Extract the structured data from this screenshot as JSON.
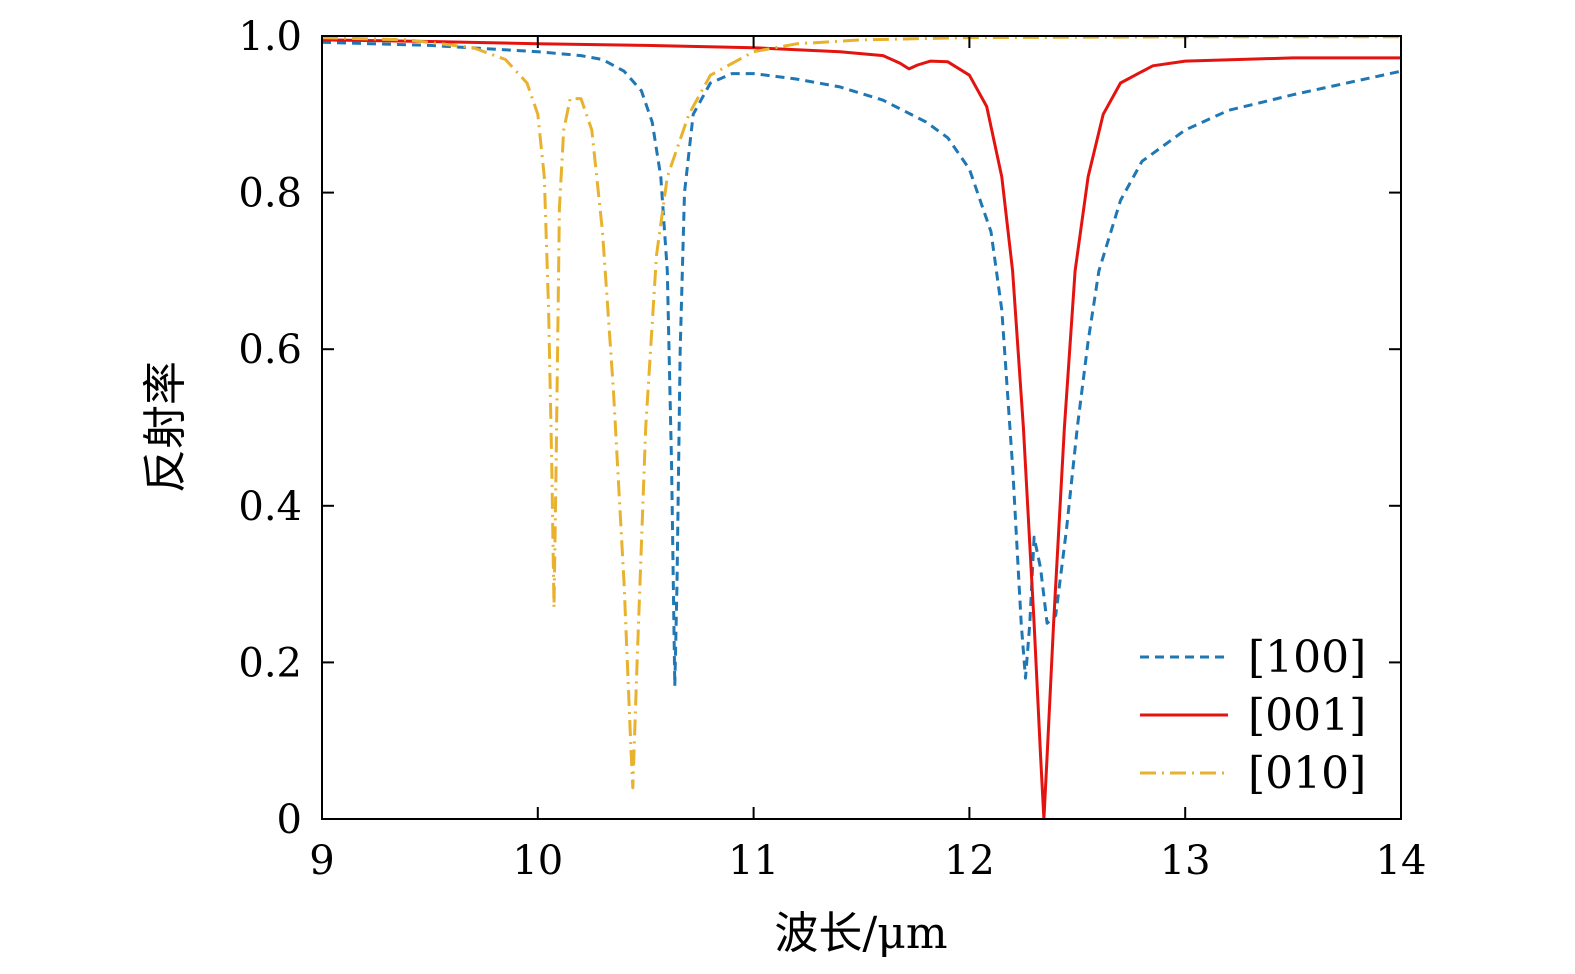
{
  "chart_data": {
    "type": "line",
    "xlabel": "波长/μm",
    "ylabel": "反射率",
    "xlim": [
      9,
      14
    ],
    "ylim": [
      0,
      1.0
    ],
    "xticks": [
      9,
      10,
      11,
      12,
      13,
      14
    ],
    "xtick_labels": [
      "9",
      "10",
      "11",
      "12",
      "13",
      "14"
    ],
    "yticks": [
      0,
      0.2,
      0.4,
      0.6,
      0.8,
      1.0
    ],
    "ytick_labels": [
      "0",
      "0.2",
      "0.4",
      "0.6",
      "0.8",
      "1.0"
    ],
    "grid": false,
    "legend_position": "bottom-right",
    "series": [
      {
        "name": "[100]",
        "color": "#1f77b4",
        "dash": "dashed",
        "points": [
          [
            9.0,
            0.992
          ],
          [
            9.5,
            0.988
          ],
          [
            10.0,
            0.98
          ],
          [
            10.2,
            0.975
          ],
          [
            10.3,
            0.97
          ],
          [
            10.4,
            0.955
          ],
          [
            10.48,
            0.93
          ],
          [
            10.53,
            0.89
          ],
          [
            10.57,
            0.82
          ],
          [
            10.6,
            0.7
          ],
          [
            10.62,
            0.45
          ],
          [
            10.635,
            0.17
          ],
          [
            10.645,
            0.3
          ],
          [
            10.66,
            0.6
          ],
          [
            10.68,
            0.8
          ],
          [
            10.72,
            0.9
          ],
          [
            10.8,
            0.94
          ],
          [
            10.9,
            0.952
          ],
          [
            11.0,
            0.952
          ],
          [
            11.2,
            0.945
          ],
          [
            11.4,
            0.935
          ],
          [
            11.6,
            0.918
          ],
          [
            11.8,
            0.89
          ],
          [
            11.9,
            0.87
          ],
          [
            12.0,
            0.83
          ],
          [
            12.1,
            0.75
          ],
          [
            12.15,
            0.65
          ],
          [
            12.2,
            0.45
          ],
          [
            12.24,
            0.25
          ],
          [
            12.26,
            0.18
          ],
          [
            12.28,
            0.25
          ],
          [
            12.3,
            0.36
          ],
          [
            12.33,
            0.32
          ],
          [
            12.36,
            0.25
          ],
          [
            12.4,
            0.26
          ],
          [
            12.45,
            0.37
          ],
          [
            12.5,
            0.5
          ],
          [
            12.55,
            0.61
          ],
          [
            12.6,
            0.7
          ],
          [
            12.7,
            0.79
          ],
          [
            12.8,
            0.84
          ],
          [
            13.0,
            0.88
          ],
          [
            13.2,
            0.905
          ],
          [
            13.5,
            0.925
          ],
          [
            13.8,
            0.943
          ],
          [
            14.0,
            0.955
          ]
        ]
      },
      {
        "name": "[001]",
        "color": "#e3140f",
        "dash": "solid",
        "points": [
          [
            9.0,
            0.995
          ],
          [
            9.5,
            0.993
          ],
          [
            10.0,
            0.99
          ],
          [
            10.5,
            0.988
          ],
          [
            11.0,
            0.985
          ],
          [
            11.4,
            0.98
          ],
          [
            11.6,
            0.975
          ],
          [
            11.68,
            0.965
          ],
          [
            11.72,
            0.958
          ],
          [
            11.76,
            0.963
          ],
          [
            11.82,
            0.968
          ],
          [
            11.9,
            0.967
          ],
          [
            12.0,
            0.95
          ],
          [
            12.08,
            0.91
          ],
          [
            12.15,
            0.82
          ],
          [
            12.2,
            0.7
          ],
          [
            12.25,
            0.5
          ],
          [
            12.3,
            0.25
          ],
          [
            12.33,
            0.08
          ],
          [
            12.345,
            0.0
          ],
          [
            12.36,
            0.08
          ],
          [
            12.39,
            0.25
          ],
          [
            12.44,
            0.5
          ],
          [
            12.49,
            0.7
          ],
          [
            12.55,
            0.82
          ],
          [
            12.62,
            0.9
          ],
          [
            12.7,
            0.94
          ],
          [
            12.85,
            0.962
          ],
          [
            13.0,
            0.968
          ],
          [
            13.5,
            0.972
          ],
          [
            14.0,
            0.972
          ]
        ]
      },
      {
        "name": "[010]",
        "color": "#e8b22e",
        "dash": "dashdot",
        "points": [
          [
            9.0,
            0.998
          ],
          [
            9.4,
            0.995
          ],
          [
            9.7,
            0.985
          ],
          [
            9.85,
            0.97
          ],
          [
            9.95,
            0.94
          ],
          [
            10.0,
            0.9
          ],
          [
            10.03,
            0.82
          ],
          [
            10.05,
            0.65
          ],
          [
            10.065,
            0.45
          ],
          [
            10.075,
            0.27
          ],
          [
            10.085,
            0.45
          ],
          [
            10.1,
            0.78
          ],
          [
            10.12,
            0.88
          ],
          [
            10.15,
            0.92
          ],
          [
            10.2,
            0.92
          ],
          [
            10.25,
            0.88
          ],
          [
            10.3,
            0.75
          ],
          [
            10.35,
            0.55
          ],
          [
            10.4,
            0.3
          ],
          [
            10.43,
            0.1
          ],
          [
            10.44,
            0.04
          ],
          [
            10.46,
            0.2
          ],
          [
            10.5,
            0.5
          ],
          [
            10.55,
            0.72
          ],
          [
            10.6,
            0.82
          ],
          [
            10.7,
            0.9
          ],
          [
            10.8,
            0.95
          ],
          [
            11.0,
            0.98
          ],
          [
            11.2,
            0.99
          ],
          [
            11.5,
            0.995
          ],
          [
            12.0,
            0.998
          ],
          [
            13.0,
            0.999
          ],
          [
            14.0,
            0.999
          ]
        ]
      }
    ]
  }
}
